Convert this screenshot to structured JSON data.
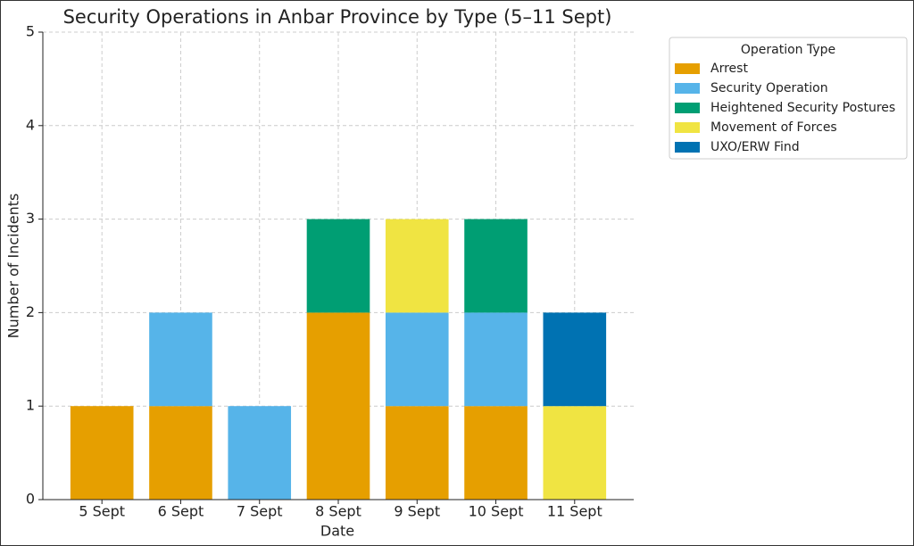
{
  "chart_data": {
    "type": "stacked_bar",
    "title": "Security Operations in Anbar Province by Type (5–11 Sept)",
    "x_label": "Date",
    "y_label": "Number of Incidents",
    "categories": [
      "5 Sept",
      "6 Sept",
      "7 Sept",
      "8 Sept",
      "9 Sept",
      "10 Sept",
      "11 Sept"
    ],
    "series": [
      {
        "name": "Arrest",
        "color": "#E69F00",
        "values": [
          1,
          1,
          0,
          2,
          1,
          1,
          0
        ]
      },
      {
        "name": "Security Operation",
        "color": "#56B4E9",
        "values": [
          0,
          1,
          1,
          0,
          1,
          1,
          0
        ]
      },
      {
        "name": "Heightened Security Postures",
        "color": "#009E73",
        "values": [
          0,
          0,
          0,
          1,
          0,
          1,
          0
        ]
      },
      {
        "name": "Movement of Forces",
        "color": "#F0E442",
        "values": [
          0,
          0,
          0,
          0,
          1,
          0,
          1
        ]
      },
      {
        "name": "UXO/ERW Find",
        "color": "#0072B2",
        "values": [
          0,
          0,
          0,
          0,
          0,
          0,
          1
        ]
      }
    ],
    "legend_title": "Operation Type",
    "legend_position": "outside right",
    "ylim": [
      0,
      5
    ],
    "yticks": [
      0,
      1,
      2,
      3,
      4,
      5
    ],
    "grid": true
  }
}
